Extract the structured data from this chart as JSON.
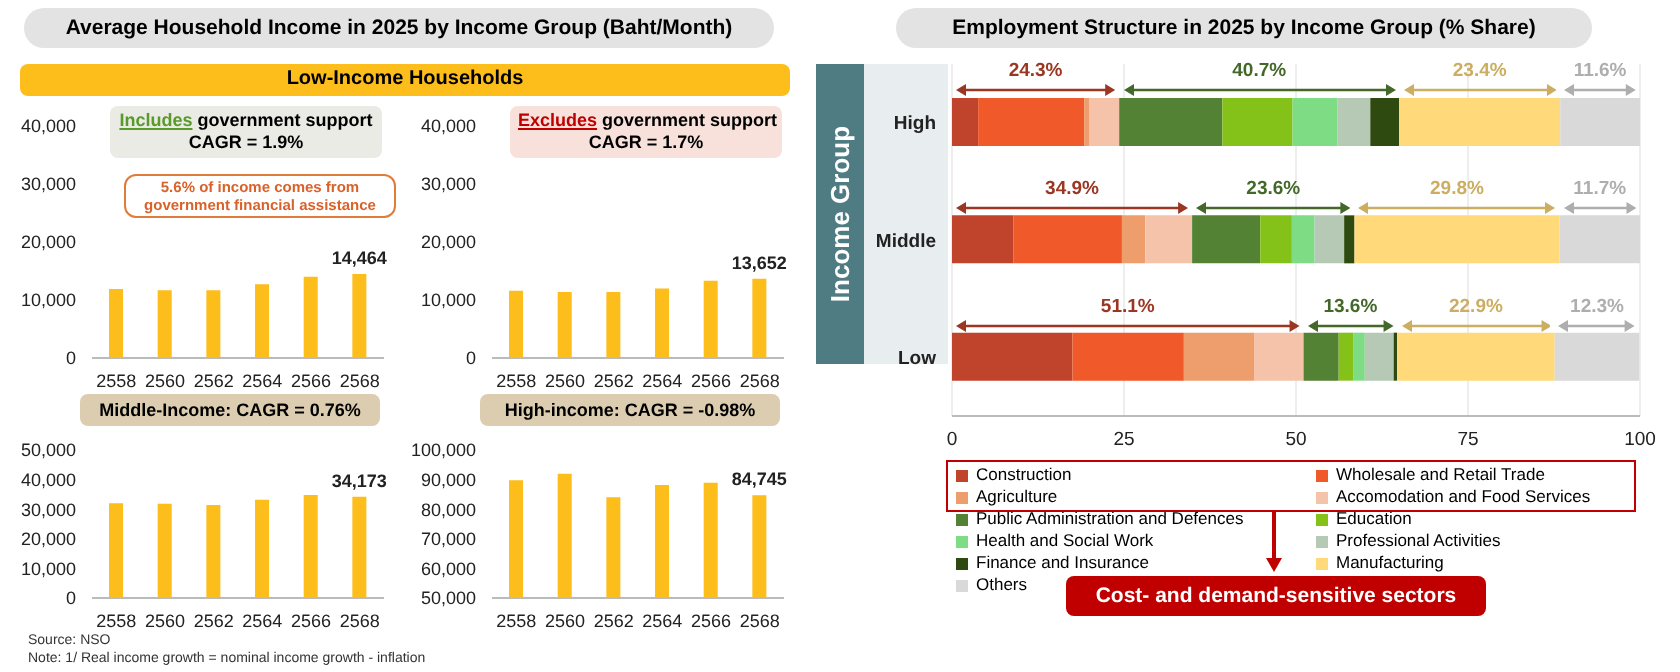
{
  "chart_data": [
    {
      "type": "bar",
      "title": "Average Household Income in 2025 by Income Group (Baht/Month)",
      "subtitle": "Low-Income Households",
      "categories": [
        "2558",
        "2560",
        "2562",
        "2564",
        "2566",
        "2568"
      ],
      "values": [
        11900,
        11700,
        11700,
        12700,
        14000,
        14464
      ],
      "value_labels": [
        null,
        null,
        null,
        null,
        null,
        "14,464"
      ],
      "color": "#fdbd1a",
      "ylim": [
        0,
        40000
      ],
      "yticks": [
        {
          "value": 0,
          "label": "0"
        },
        {
          "value": 10000,
          "label": "10,000"
        },
        {
          "value": 20000,
          "label": "20,000"
        },
        {
          "value": 30000,
          "label": "30,000"
        },
        {
          "value": 40000,
          "label": "40,000"
        }
      ],
      "grid": false,
      "legend": false,
      "annotations": [
        "Includes government support CAGR = 1.9%",
        "5.6% of income comes from government financial assistance"
      ]
    },
    {
      "type": "bar",
      "categories": [
        "2558",
        "2560",
        "2562",
        "2564",
        "2566",
        "2568"
      ],
      "values": [
        11600,
        11400,
        11400,
        12000,
        13300,
        13652
      ],
      "value_labels": [
        null,
        null,
        null,
        null,
        null,
        "13,652"
      ],
      "color": "#fdbd1a",
      "ylim": [
        0,
        40000
      ],
      "yticks": [
        {
          "value": 0,
          "label": "0"
        },
        {
          "value": 10000,
          "label": "10,000"
        },
        {
          "value": 20000,
          "label": "20,000"
        },
        {
          "value": 30000,
          "label": "30,000"
        },
        {
          "value": 40000,
          "label": "40,000"
        }
      ],
      "grid": false,
      "legend": false,
      "annotations": [
        "Excludes government support CAGR = 1.7%"
      ]
    },
    {
      "type": "bar",
      "title": "Middle-Income: CAGR = 0.76%",
      "categories": [
        "2558",
        "2560",
        "2562",
        "2564",
        "2566",
        "2568"
      ],
      "values": [
        32000,
        31800,
        31400,
        33200,
        34800,
        34173
      ],
      "value_labels": [
        null,
        null,
        null,
        null,
        null,
        "34,173"
      ],
      "color": "#fdbd1a",
      "ylim": [
        0,
        50000
      ],
      "yticks": [
        {
          "value": 0,
          "label": "0"
        },
        {
          "value": 10000,
          "label": "10,000"
        },
        {
          "value": 20000,
          "label": "20,000"
        },
        {
          "value": 30000,
          "label": "30,000"
        },
        {
          "value": 40000,
          "label": "40,000"
        },
        {
          "value": 50000,
          "label": "50,000"
        }
      ],
      "grid": false,
      "legend": false,
      "annotations": [
        "Source: NSO",
        "Note: 1/ Real income growth = nominal income growth - inflation"
      ]
    },
    {
      "type": "bar",
      "title": "High-income: CAGR = -0.98%",
      "categories": [
        "2558",
        "2560",
        "2562",
        "2564",
        "2566",
        "2568"
      ],
      "values": [
        89800,
        92000,
        84000,
        88200,
        88900,
        84745
      ],
      "value_labels": [
        null,
        null,
        null,
        null,
        null,
        "84,745"
      ],
      "color": "#fdbd1a",
      "ylim": [
        50000,
        100000
      ],
      "yticks": [
        {
          "value": 50000,
          "label": "50,000"
        },
        {
          "value": 60000,
          "label": "60,000"
        },
        {
          "value": 70000,
          "label": "70,000"
        },
        {
          "value": 80000,
          "label": "80,000"
        },
        {
          "value": 90000,
          "label": "90,000"
        },
        {
          "value": 100000,
          "label": "100,000"
        }
      ],
      "grid": false,
      "legend": false
    },
    {
      "type": "bar",
      "orientation": "horizontal",
      "stacked": true,
      "title": "Employment Structure in 2025 by Income Group (% Share)",
      "ylabel": "Income Group",
      "categories": [
        "High",
        "Middle",
        "Low"
      ],
      "xlim": [
        0,
        100
      ],
      "xticks": [
        0,
        25,
        50,
        75,
        100
      ],
      "grid": "x",
      "legend": "bottom",
      "series": [
        {
          "name": "Construction",
          "color": "#c0442b",
          "values": [
            3.8,
            8.9,
            17.5
          ]
        },
        {
          "name": "Wholesale and Retail Trade",
          "color": "#f0592a",
          "values": [
            15.4,
            15.8,
            16.2
          ]
        },
        {
          "name": "Agriculture",
          "color": "#ee9e6c",
          "values": [
            0.8,
            3.4,
            10.2
          ]
        },
        {
          "name": "Accomodation and Food Services",
          "color": "#f5c3aa",
          "values": [
            4.3,
            6.8,
            7.2
          ]
        },
        {
          "name": "Public Administration and Defences",
          "color": "#548235",
          "values": [
            15.0,
            9.9,
            5.1
          ]
        },
        {
          "name": "Education",
          "color": "#84c21a",
          "values": [
            10.2,
            4.6,
            2.1
          ]
        },
        {
          "name": "Health and Social Work",
          "color": "#7ddc84",
          "values": [
            6.5,
            3.3,
            1.7
          ]
        },
        {
          "name": "Professional Activities",
          "color": "#b5c9b5",
          "values": [
            4.8,
            4.3,
            4.2
          ]
        },
        {
          "name": "Finance and Insurance",
          "color": "#2f4a10",
          "values": [
            4.2,
            1.5,
            0.5
          ]
        },
        {
          "name": "Manufacturing",
          "color": "#ffd97a",
          "values": [
            23.4,
            29.8,
            22.9
          ]
        },
        {
          "name": "Others",
          "color": "#d9d9d9",
          "values": [
            11.6,
            11.7,
            12.3
          ]
        }
      ],
      "annotations": [
        "24.3%",
        "40.7%",
        "23.4%",
        "11.6%",
        "34.9%",
        "23.6%",
        "29.8%",
        "11.7%",
        "51.1%",
        "13.6%",
        "22.9%",
        "12.3%",
        "Cost- and demand-sensitive sectors"
      ]
    }
  ]
}
